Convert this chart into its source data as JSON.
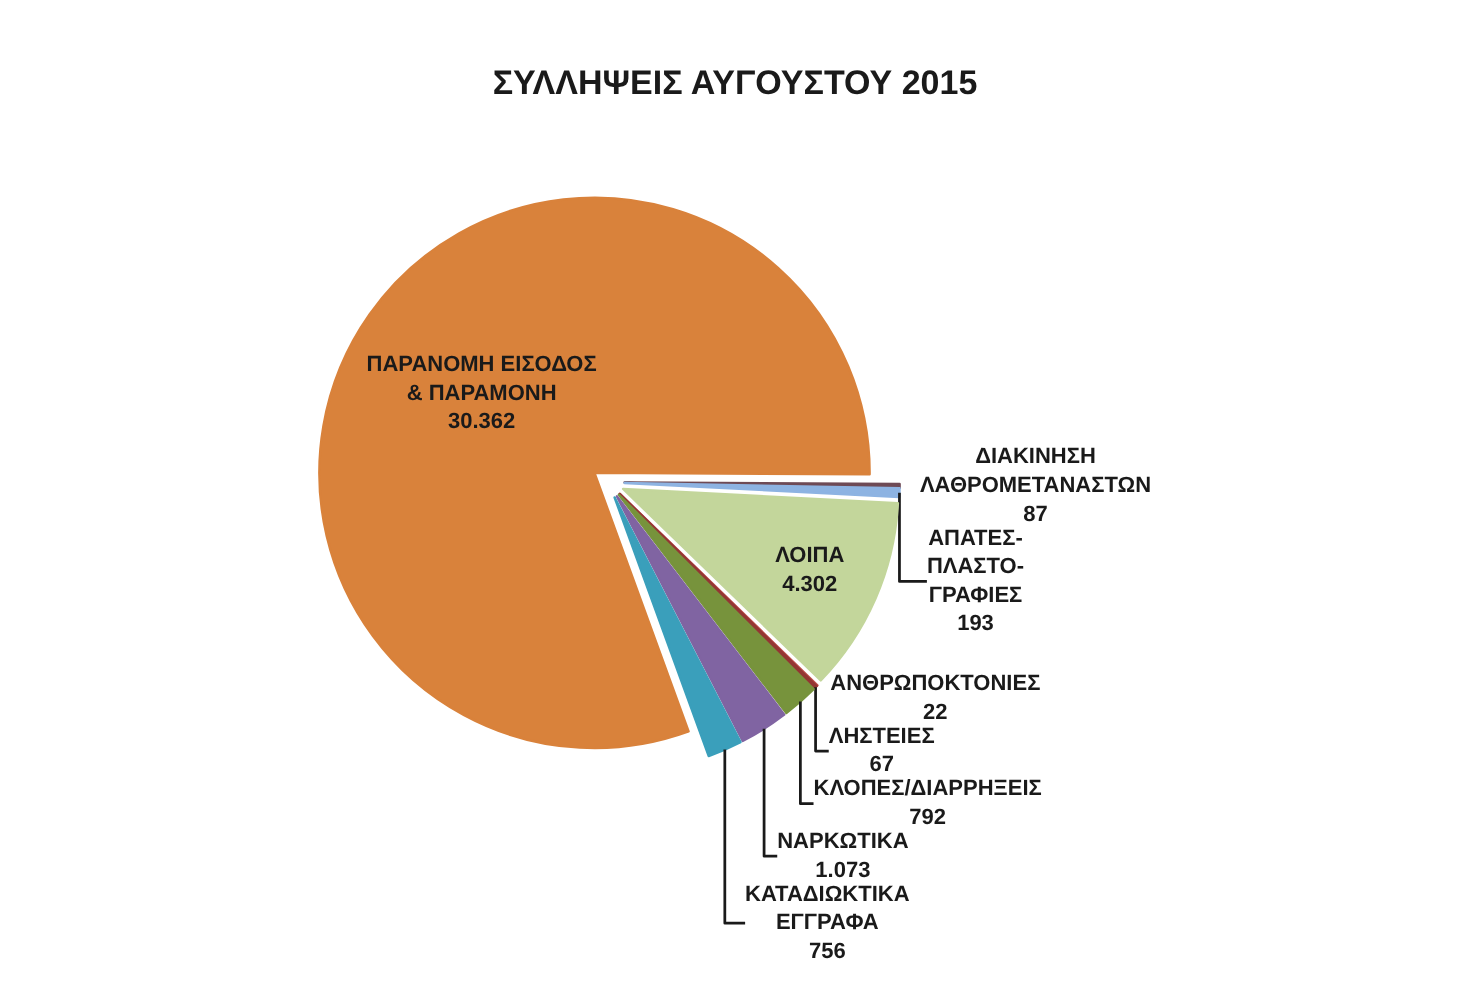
{
  "chart_data": {
    "type": "pie",
    "title": "ΣΥΛΛΗΨΕΙΣ ΑΥΓΟΥΣΤΟΥ 2015",
    "categories": [
      "ΠΑΡΑΝΟΜΗ ΕΙΣΟΔΟΣ\n& ΠΑΡΑΜΟΝΗ",
      "ΔΙΑΚΙΝΗΣΗ\nΛΑΘΡΟΜΕΤΑΝΑΣΤΩΝ",
      "ΑΠΑΤΕΣ-\nΠΛΑΣΤΟ-\nΓΡΑΦΙΕΣ",
      "ΛΟΙΠΑ",
      "ΑΝΘΡΩΠΟΚΤΟΝΙΕΣ",
      "ΛΗΣΤΕΙΕΣ",
      "ΚΛΟΠΕΣ/ΔΙΑΡΡΗΞΕΙΣ",
      "ΝΑΡΚΩΤΙΚΑ",
      "ΚΑΤΑΔΙΩΚΤΙΚΑ\nΕΓΓΡΑΦΑ"
    ],
    "values": [
      30362,
      87,
      193,
      4302,
      22,
      67,
      792,
      1073,
      756
    ],
    "value_labels": [
      "30.362",
      "87",
      "193",
      "4.302",
      "22",
      "67",
      "792",
      "1.073",
      "756"
    ],
    "colors": [
      "#d9823b",
      "#6e4a55",
      "#8db3e2",
      "#c3d69b",
      "#c0504d",
      "#943634",
      "#77933c",
      "#8064a2",
      "#3a9fbb"
    ],
    "legend": false
  }
}
